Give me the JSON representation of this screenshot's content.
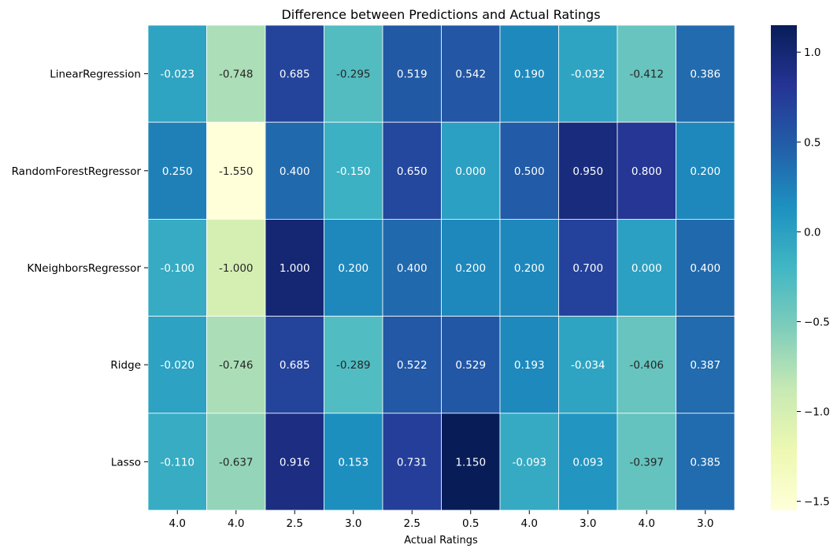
{
  "chart_data": {
    "type": "heatmap",
    "title": "Difference between Predictions and Actual Ratings",
    "xlabel": "Actual Ratings",
    "ylabel": "",
    "x_categories": [
      "4.0",
      "4.0",
      "2.5",
      "3.0",
      "2.5",
      "0.5",
      "4.0",
      "3.0",
      "4.0",
      "3.0"
    ],
    "y_categories": [
      "LinearRegression",
      "RandomForestRegressor",
      "KNeighborsRegressor",
      "Ridge",
      "Lasso"
    ],
    "values": [
      [
        -0.023,
        -0.748,
        0.685,
        -0.295,
        0.519,
        0.542,
        0.19,
        -0.032,
        -0.412,
        0.386
      ],
      [
        0.25,
        -1.55,
        0.4,
        -0.15,
        0.65,
        0.0,
        0.5,
        0.95,
        0.8,
        0.2
      ],
      [
        -0.1,
        -1.0,
        1.0,
        0.2,
        0.4,
        0.2,
        0.2,
        0.7,
        0.0,
        0.4
      ],
      [
        -0.02,
        -0.746,
        0.685,
        -0.289,
        0.522,
        0.529,
        0.193,
        -0.034,
        -0.406,
        0.387
      ],
      [
        -0.11,
        -0.637,
        0.916,
        0.153,
        0.731,
        1.15,
        -0.093,
        0.093,
        -0.397,
        0.385
      ]
    ],
    "annotation_format": "3 decimals",
    "colormap": "YlGnBu",
    "vmin": -1.55,
    "vmax": 1.15,
    "colorbar_ticks": [
      -1.5,
      -1.0,
      -0.5,
      0.0,
      0.5,
      1.0
    ],
    "colorbar_tick_labels": [
      "−1.5",
      "−1.0",
      "−0.5",
      "0.0",
      "0.5",
      "1.0"
    ],
    "colorbar_placement": "right",
    "grid": "white cell borders"
  }
}
